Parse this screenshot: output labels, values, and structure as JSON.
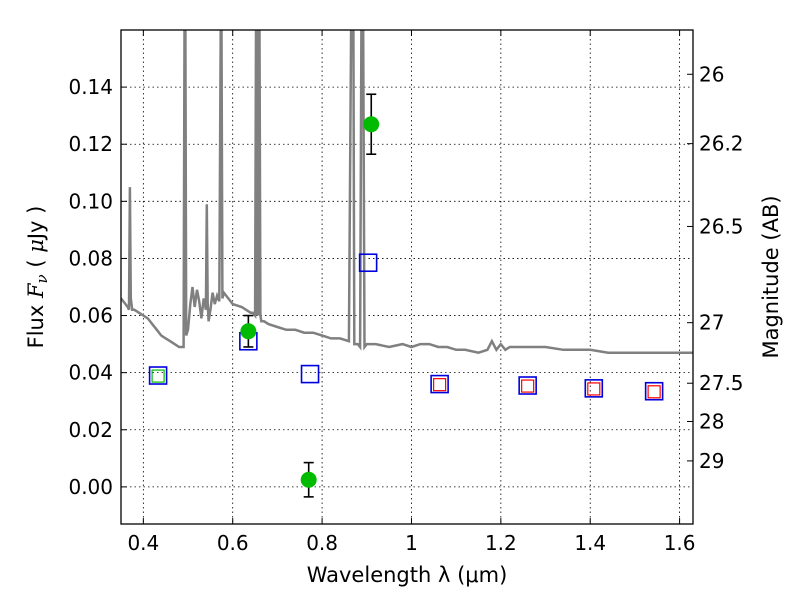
{
  "chart_data": {
    "type": "scatter",
    "title": "",
    "xlabel": "Wavelength  λ (μm)",
    "ylabel_parts": [
      "Flux  ",
      "F",
      "ν",
      "  ( ",
      "μ",
      "Jy )"
    ],
    "ylabel2": "Magnitude (AB)",
    "xlim": [
      0.35,
      1.63
    ],
    "ylim": [
      -0.013,
      0.16
    ],
    "grid": true,
    "x_ticks": [
      {
        "value": 0.4,
        "label": "0.4"
      },
      {
        "value": 0.6,
        "label": "0.6"
      },
      {
        "value": 0.8,
        "label": "0.8"
      },
      {
        "value": 1.0,
        "label": "1"
      },
      {
        "value": 1.2,
        "label": "1.2"
      },
      {
        "value": 1.4,
        "label": "1.4"
      },
      {
        "value": 1.6,
        "label": "1.6"
      }
    ],
    "y_ticks": [
      {
        "value": 0.0,
        "label": "0.00"
      },
      {
        "value": 0.02,
        "label": "0.02"
      },
      {
        "value": 0.04,
        "label": "0.04"
      },
      {
        "value": 0.06,
        "label": "0.06"
      },
      {
        "value": 0.08,
        "label": "0.08"
      },
      {
        "value": 0.1,
        "label": "0.10"
      },
      {
        "value": 0.12,
        "label": "0.12"
      },
      {
        "value": 0.14,
        "label": "0.14"
      }
    ],
    "y2_ticks": [
      {
        "flux": 0.1445,
        "label": "26"
      },
      {
        "flux": 0.1202,
        "label": "26.2"
      },
      {
        "flux": 0.0912,
        "label": "26.5"
      },
      {
        "flux": 0.0575,
        "label": "27"
      },
      {
        "flux": 0.0363,
        "label": "27.5"
      },
      {
        "flux": 0.0229,
        "label": "28"
      },
      {
        "flux": 0.0091,
        "label": "29"
      }
    ],
    "colors": {
      "model_spectrum": "#808080",
      "observed": "#00bb00",
      "model_photometry": "#0000dd",
      "secondary_photometry": "#ff0000",
      "errorbar": "#000000"
    },
    "series": [
      {
        "kind": "line",
        "x": [
          0.35,
          0.36,
          0.365,
          0.368,
          0.37,
          0.372,
          0.375,
          0.38,
          0.39,
          0.4,
          0.41,
          0.42,
          0.43,
          0.44,
          0.45,
          0.46,
          0.47,
          0.48,
          0.49,
          0.492,
          0.494,
          0.496,
          0.5,
          0.505,
          0.51,
          0.515,
          0.52,
          0.525,
          0.53,
          0.535,
          0.54,
          0.542,
          0.544,
          0.546,
          0.55,
          0.555,
          0.56,
          0.565,
          0.57,
          0.573,
          0.575,
          0.577,
          0.58,
          0.59,
          0.6,
          0.62,
          0.63,
          0.64,
          0.645,
          0.65,
          0.652,
          0.654,
          0.656,
          0.658,
          0.66,
          0.662,
          0.664,
          0.67,
          0.68,
          0.7,
          0.72,
          0.74,
          0.76,
          0.78,
          0.8,
          0.82,
          0.84,
          0.86,
          0.865,
          0.868,
          0.87,
          0.872,
          0.875,
          0.88,
          0.885,
          0.888,
          0.89,
          0.892,
          0.895,
          0.9,
          0.92,
          0.95,
          0.98,
          1.0,
          1.02,
          1.04,
          1.06,
          1.08,
          1.1,
          1.12,
          1.15,
          1.17,
          1.18,
          1.19,
          1.2,
          1.21,
          1.22,
          1.24,
          1.26,
          1.28,
          1.3,
          1.34,
          1.38,
          1.4,
          1.44,
          1.48,
          1.5,
          1.55,
          1.6,
          1.63
        ],
        "y": [
          0.066,
          0.064,
          0.063,
          0.062,
          0.105,
          0.066,
          0.062,
          0.062,
          0.061,
          0.06,
          0.059,
          0.057,
          0.055,
          0.053,
          0.052,
          0.051,
          0.05,
          0.049,
          0.049,
          0.16,
          0.16,
          0.053,
          0.055,
          0.064,
          0.07,
          0.063,
          0.069,
          0.065,
          0.059,
          0.066,
          0.062,
          0.099,
          0.064,
          0.058,
          0.062,
          0.068,
          0.064,
          0.067,
          0.065,
          0.16,
          0.16,
          0.066,
          0.068,
          0.066,
          0.064,
          0.063,
          0.062,
          0.061,
          0.061,
          0.06,
          0.16,
          0.06,
          0.16,
          0.06,
          0.16,
          0.06,
          0.058,
          0.058,
          0.057,
          0.056,
          0.055,
          0.055,
          0.054,
          0.054,
          0.053,
          0.052,
          0.052,
          0.051,
          0.16,
          0.16,
          0.16,
          0.05,
          0.05,
          0.05,
          0.049,
          0.16,
          0.16,
          0.16,
          0.049,
          0.05,
          0.05,
          0.049,
          0.05,
          0.049,
          0.05,
          0.05,
          0.049,
          0.049,
          0.048,
          0.048,
          0.047,
          0.048,
          0.051,
          0.048,
          0.05,
          0.048,
          0.049,
          0.049,
          0.049,
          0.049,
          0.049,
          0.048,
          0.048,
          0.048,
          0.047,
          0.047,
          0.047,
          0.047,
          0.047,
          0.047
        ]
      },
      {
        "kind": "observed",
        "points": [
          {
            "x": 0.635,
            "y": 0.0545,
            "err": 0.0055
          },
          {
            "x": 0.77,
            "y": 0.0025,
            "err": 0.006
          },
          {
            "x": 0.91,
            "y": 0.127,
            "err": 0.0105
          }
        ]
      },
      {
        "kind": "model_photometry",
        "points": [
          {
            "x": 0.433,
            "y": 0.039
          },
          {
            "x": 0.635,
            "y": 0.051
          },
          {
            "x": 0.773,
            "y": 0.0395
          },
          {
            "x": 0.903,
            "y": 0.0785
          },
          {
            "x": 1.063,
            "y": 0.036
          },
          {
            "x": 1.26,
            "y": 0.0355
          },
          {
            "x": 1.408,
            "y": 0.0345
          },
          {
            "x": 1.543,
            "y": 0.0335
          }
        ]
      },
      {
        "kind": "secondary_photometry",
        "points": [
          {
            "x": 1.063,
            "y": 0.0358,
            "color": "#ff0000"
          },
          {
            "x": 1.26,
            "y": 0.0353,
            "color": "#ff0000"
          },
          {
            "x": 1.408,
            "y": 0.0343,
            "color": "#ff0000"
          },
          {
            "x": 1.543,
            "y": 0.0333,
            "color": "#ff0000"
          },
          {
            "x": 0.433,
            "y": 0.0388,
            "color": "#00bb00"
          }
        ]
      }
    ]
  }
}
